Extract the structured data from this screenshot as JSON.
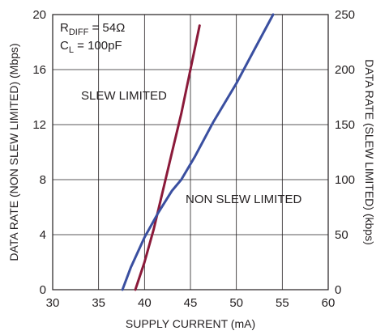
{
  "chart_data": {
    "type": "line",
    "xlabel": "SUPPLY CURRENT (mA)",
    "ylabel_left": "DATA RATE (NON SLEW LIMITED) (Mbps)",
    "ylabel_right": "DATA RATE (SLEW LIMITED) (kbps)",
    "xlim": [
      30,
      60
    ],
    "ylim_left": [
      0,
      20
    ],
    "ylim_right": [
      0,
      250
    ],
    "x_ticks": [
      "30",
      "35",
      "40",
      "45",
      "50",
      "55",
      "60"
    ],
    "y_ticks_left": [
      "0",
      "4",
      "8",
      "12",
      "16",
      "20"
    ],
    "y_ticks_right": [
      "0",
      "50",
      "100",
      "150",
      "200",
      "250"
    ],
    "grid": true,
    "annotations": {
      "r_main": "R",
      "r_sub": "DIFF",
      "r_tail": " = 54Ω",
      "c_main": "C",
      "c_sub": "L",
      "c_tail": " = 100pF",
      "slew": "SLEW LIMITED",
      "nonslew": "NON SLEW LIMITED"
    },
    "series": [
      {
        "name": "SLEW LIMITED",
        "axis": "right",
        "color": "#8b1a3a",
        "x": [
          39.0,
          40.0,
          41.0,
          42.0,
          43.0,
          44.0,
          45.0,
          46.0
        ],
        "y": [
          0,
          25,
          55,
          90,
          125,
          160,
          200,
          240
        ]
      },
      {
        "name": "NON SLEW LIMITED",
        "axis": "left",
        "color": "#3a4fa0",
        "x": [
          37.6,
          38.5,
          40.0,
          41.5,
          43.0,
          44.0,
          45.5,
          47.5,
          50.0,
          52.0,
          54.0
        ],
        "y": [
          0,
          1.6,
          3.8,
          5.6,
          7.2,
          8.0,
          9.7,
          12.2,
          15.0,
          17.5,
          20.0
        ]
      }
    ]
  }
}
